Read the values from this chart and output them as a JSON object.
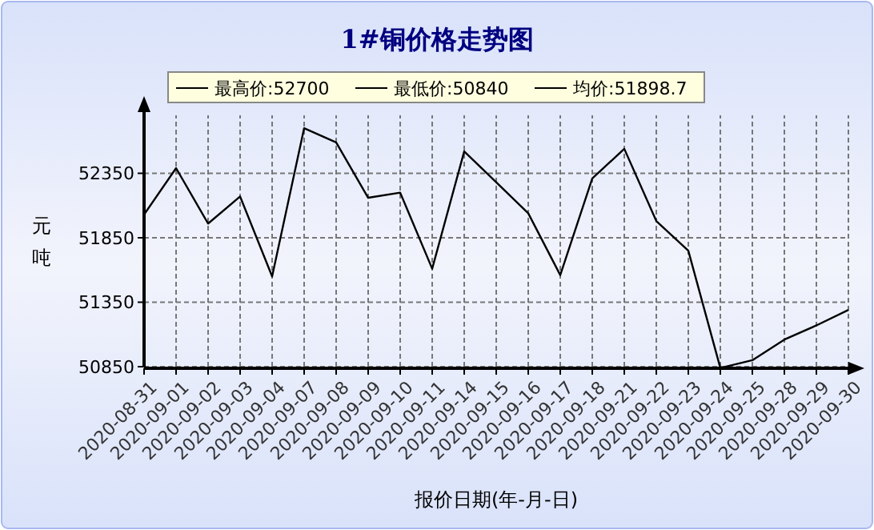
{
  "chart_data": {
    "type": "line",
    "title": "1#铜价格走势图",
    "xlabel": "报价日期(年-月-日)",
    "ylabel": "元吨",
    "annotations": [
      "最高价:52700",
      "最低价:50840",
      "均价:51898.7"
    ],
    "categories": [
      "2020-08-31",
      "2020-09-01",
      "2020-09-02",
      "2020-09-03",
      "2020-09-04",
      "2020-09-07",
      "2020-09-08",
      "2020-09-09",
      "2020-09-10",
      "2020-09-11",
      "2020-09-14",
      "2020-09-15",
      "2020-09-16",
      "2020-09-17",
      "2020-09-18",
      "2020-09-21",
      "2020-09-22",
      "2020-09-23",
      "2020-09-24",
      "2020-09-25",
      "2020-09-28",
      "2020-09-29",
      "2020-09-30"
    ],
    "series": [
      {
        "color": "#000000",
        "values": [
          52030,
          52390,
          51960,
          52170,
          51550,
          52700,
          52590,
          52160,
          52200,
          51610,
          52520,
          52280,
          52040,
          51560,
          52310,
          52540,
          51980,
          51750,
          50840,
          50900,
          51060,
          51170,
          51290
        ]
      }
    ],
    "ylim": [
      50840,
      52800
    ],
    "yticks": [
      50850,
      51350,
      51850,
      52350
    ],
    "grid": true,
    "marker": "none",
    "line_style": "solid"
  }
}
